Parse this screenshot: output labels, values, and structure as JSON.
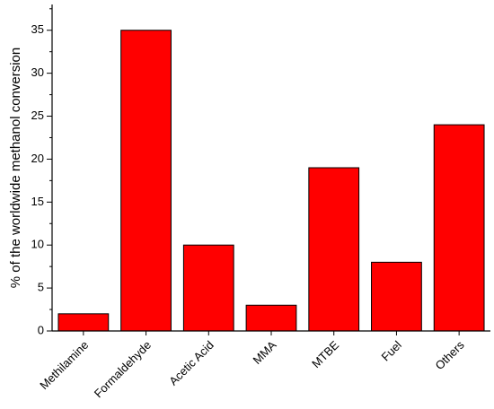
{
  "chart_data": {
    "type": "bar",
    "y_label": "% of the worldwide methanol conversion",
    "categories": [
      "Methilamine",
      "Formaldehyde",
      "Acetic Acid",
      "MMA",
      "MTBE",
      "Fuel",
      "Others"
    ],
    "values": [
      2,
      35,
      10,
      3,
      19,
      8,
      24
    ],
    "color": "#ff0000",
    "ylim": [
      0,
      38
    ],
    "yticks": [
      0,
      5,
      10,
      15,
      20,
      25,
      30,
      35
    ],
    "grid": false
  }
}
